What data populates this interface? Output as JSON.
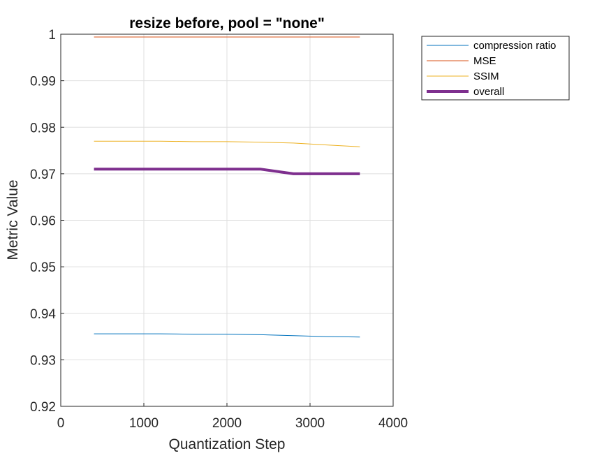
{
  "chart_data": {
    "type": "line",
    "title": "resize before, pool = \"none\"",
    "xlabel": "Quantization Step",
    "ylabel": "Metric Value",
    "xlim": [
      0,
      4000
    ],
    "ylim": [
      0.92,
      1
    ],
    "xticks": [
      0,
      1000,
      2000,
      3000,
      4000
    ],
    "xtick_labels": [
      "0",
      "1000",
      "2000",
      "3000",
      "4000"
    ],
    "yticks": [
      0.92,
      0.93,
      0.94,
      0.95,
      0.96,
      0.97,
      0.98,
      0.99,
      1
    ],
    "ytick_labels": [
      "0.92",
      "0.93",
      "0.94",
      "0.95",
      "0.96",
      "0.97",
      "0.98",
      "0.99",
      "1"
    ],
    "grid": true,
    "legend_position": "outside-top-right",
    "x": [
      400,
      800,
      1200,
      1600,
      2000,
      2400,
      2800,
      3200,
      3600
    ],
    "series": [
      {
        "name": "compression ratio",
        "color": "#0072BD",
        "width": 1,
        "values": [
          0.9356,
          0.9356,
          0.9356,
          0.9355,
          0.9355,
          0.9354,
          0.9352,
          0.935,
          0.9349
        ]
      },
      {
        "name": "MSE",
        "color": "#D95319",
        "width": 1,
        "values": [
          0.9994,
          0.9994,
          0.9994,
          0.9994,
          0.9994,
          0.9994,
          0.9994,
          0.9994,
          0.9994
        ]
      },
      {
        "name": "SSIM",
        "color": "#EDB120",
        "width": 1,
        "values": [
          0.977,
          0.977,
          0.977,
          0.9769,
          0.9769,
          0.9768,
          0.9766,
          0.9762,
          0.9758
        ]
      },
      {
        "name": "overall",
        "color": "#7E2F8E",
        "width": 4,
        "values": [
          0.971,
          0.971,
          0.971,
          0.971,
          0.971,
          0.971,
          0.97,
          0.97,
          0.97
        ]
      }
    ]
  }
}
